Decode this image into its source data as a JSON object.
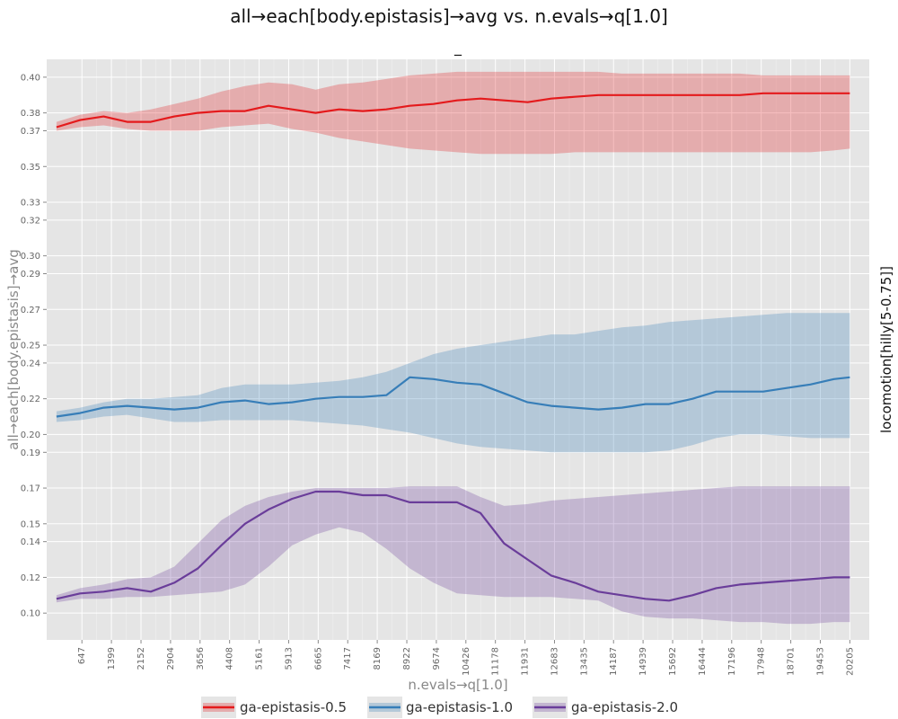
{
  "chart_data": {
    "type": "line",
    "title": "all→each[body.epistasis]→avg vs. n.evals→q[1.0]",
    "subtitle": "_",
    "xlabel": "n.evals→q[1.0]",
    "ylabel": "all→each[body.epistasis]→avg",
    "side_label": "locomotion[hilly[5-0.75]]",
    "xlim": [
      -250,
      20700
    ],
    "ylim": [
      0.085,
      0.41
    ],
    "x_ticks": [
      647,
      1399,
      2152,
      2904,
      3656,
      4408,
      5161,
      5913,
      6665,
      7417,
      8169,
      8922,
      9674,
      10426,
      11178,
      11931,
      12683,
      13435,
      14187,
      14939,
      15692,
      16444,
      17196,
      17948,
      18701,
      19453,
      20205
    ],
    "y_ticks": [
      0.1,
      0.12,
      0.14,
      0.15,
      0.17,
      0.19,
      0.2,
      0.22,
      0.24,
      0.25,
      0.27,
      0.29,
      0.3,
      0.32,
      0.33,
      0.35,
      0.37,
      0.38,
      0.4
    ],
    "y_tick_labels": [
      "0.10",
      "0.12",
      "0.14",
      "0.15",
      "0.17",
      "0.19",
      "0.20",
      "0.22",
      "0.24",
      "0.25",
      "0.27",
      "0.29",
      "0.30",
      "0.32",
      "0.33",
      "0.35",
      "0.37",
      "0.38",
      "0.40"
    ],
    "grid": true,
    "legend_position": "bottom",
    "series": [
      {
        "name": "ga-epistasis-0.5",
        "color": "#e41a1c",
        "x": [
          0,
          600,
          1200,
          1800,
          2400,
          3000,
          3600,
          4200,
          4800,
          5400,
          6000,
          6600,
          7200,
          7800,
          8400,
          9000,
          9600,
          10200,
          10800,
          11400,
          12000,
          12600,
          13200,
          13800,
          14400,
          15000,
          15600,
          16200,
          16800,
          17400,
          18000,
          18600,
          19200,
          19800,
          20205
        ],
        "y": [
          0.372,
          0.376,
          0.378,
          0.375,
          0.375,
          0.378,
          0.38,
          0.381,
          0.381,
          0.384,
          0.382,
          0.38,
          0.382,
          0.381,
          0.382,
          0.384,
          0.385,
          0.387,
          0.388,
          0.387,
          0.386,
          0.388,
          0.389,
          0.39,
          0.39,
          0.39,
          0.39,
          0.39,
          0.39,
          0.39,
          0.391,
          0.391,
          0.391,
          0.391,
          0.391
        ],
        "lower": [
          0.37,
          0.372,
          0.373,
          0.371,
          0.37,
          0.37,
          0.37,
          0.372,
          0.373,
          0.374,
          0.371,
          0.369,
          0.366,
          0.364,
          0.362,
          0.36,
          0.359,
          0.358,
          0.357,
          0.357,
          0.357,
          0.357,
          0.358,
          0.358,
          0.358,
          0.358,
          0.358,
          0.358,
          0.358,
          0.358,
          0.358,
          0.358,
          0.358,
          0.359,
          0.36
        ],
        "upper": [
          0.375,
          0.379,
          0.381,
          0.38,
          0.382,
          0.385,
          0.388,
          0.392,
          0.395,
          0.397,
          0.396,
          0.393,
          0.396,
          0.397,
          0.399,
          0.401,
          0.402,
          0.403,
          0.403,
          0.403,
          0.403,
          0.403,
          0.403,
          0.403,
          0.402,
          0.402,
          0.402,
          0.402,
          0.402,
          0.402,
          0.401,
          0.401,
          0.401,
          0.401,
          0.401
        ]
      },
      {
        "name": "ga-epistasis-1.0",
        "color": "#377eb8",
        "x": [
          0,
          600,
          1200,
          1800,
          2400,
          3000,
          3600,
          4200,
          4800,
          5400,
          6000,
          6600,
          7200,
          7800,
          8400,
          9000,
          9600,
          10200,
          10800,
          11400,
          12000,
          12600,
          13200,
          13800,
          14400,
          15000,
          15600,
          16200,
          16800,
          17400,
          18000,
          18600,
          19200,
          19800,
          20205
        ],
        "y": [
          0.21,
          0.212,
          0.215,
          0.216,
          0.215,
          0.214,
          0.215,
          0.218,
          0.219,
          0.217,
          0.218,
          0.22,
          0.221,
          0.221,
          0.222,
          0.232,
          0.231,
          0.229,
          0.228,
          0.223,
          0.218,
          0.216,
          0.215,
          0.214,
          0.215,
          0.217,
          0.217,
          0.22,
          0.224,
          0.224,
          0.224,
          0.226,
          0.228,
          0.231,
          0.232
        ],
        "lower": [
          0.207,
          0.208,
          0.21,
          0.211,
          0.209,
          0.207,
          0.207,
          0.208,
          0.208,
          0.208,
          0.208,
          0.207,
          0.206,
          0.205,
          0.203,
          0.201,
          0.198,
          0.195,
          0.193,
          0.192,
          0.191,
          0.19,
          0.19,
          0.19,
          0.19,
          0.19,
          0.191,
          0.194,
          0.198,
          0.2,
          0.2,
          0.199,
          0.198,
          0.198,
          0.198
        ],
        "upper": [
          0.213,
          0.215,
          0.218,
          0.22,
          0.22,
          0.221,
          0.222,
          0.226,
          0.228,
          0.228,
          0.228,
          0.229,
          0.23,
          0.232,
          0.235,
          0.24,
          0.245,
          0.248,
          0.25,
          0.252,
          0.254,
          0.256,
          0.256,
          0.258,
          0.26,
          0.261,
          0.263,
          0.264,
          0.265,
          0.266,
          0.267,
          0.268,
          0.268,
          0.268,
          0.268
        ]
      },
      {
        "name": "ga-epistasis-2.0",
        "color": "#6a3d9a",
        "x": [
          0,
          600,
          1200,
          1800,
          2400,
          3000,
          3600,
          4200,
          4800,
          5400,
          6000,
          6600,
          7200,
          7800,
          8400,
          9000,
          9600,
          10200,
          10800,
          11400,
          12000,
          12600,
          13200,
          13800,
          14400,
          15000,
          15600,
          16200,
          16800,
          17400,
          18000,
          18600,
          19200,
          19800,
          20205
        ],
        "y": [
          0.108,
          0.111,
          0.112,
          0.114,
          0.112,
          0.117,
          0.125,
          0.138,
          0.15,
          0.158,
          0.164,
          0.168,
          0.168,
          0.166,
          0.166,
          0.162,
          0.162,
          0.162,
          0.156,
          0.139,
          0.13,
          0.121,
          0.117,
          0.112,
          0.11,
          0.108,
          0.107,
          0.11,
          0.114,
          0.116,
          0.117,
          0.118,
          0.119,
          0.12,
          0.12
        ],
        "lower": [
          0.106,
          0.108,
          0.108,
          0.109,
          0.109,
          0.11,
          0.111,
          0.112,
          0.116,
          0.126,
          0.138,
          0.144,
          0.148,
          0.145,
          0.136,
          0.125,
          0.117,
          0.111,
          0.11,
          0.109,
          0.109,
          0.109,
          0.108,
          0.107,
          0.101,
          0.098,
          0.097,
          0.097,
          0.096,
          0.095,
          0.095,
          0.094,
          0.094,
          0.095,
          0.095
        ],
        "upper": [
          0.11,
          0.114,
          0.116,
          0.119,
          0.12,
          0.126,
          0.139,
          0.152,
          0.16,
          0.165,
          0.168,
          0.17,
          0.17,
          0.17,
          0.17,
          0.171,
          0.171,
          0.171,
          0.165,
          0.16,
          0.161,
          0.163,
          0.164,
          0.165,
          0.166,
          0.167,
          0.168,
          0.169,
          0.17,
          0.171,
          0.171,
          0.171,
          0.171,
          0.171,
          0.171
        ]
      }
    ]
  }
}
